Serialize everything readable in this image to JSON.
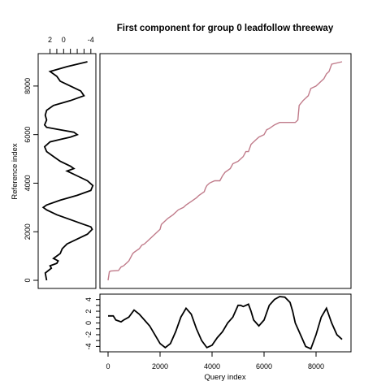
{
  "chart_data": {
    "type": "line",
    "title": "First component for group 0 leadfollow threeway",
    "panels": {
      "alignment": {
        "xlabel": "Query index",
        "ylabel": "Reference index",
        "xlim": [
          0,
          9000
        ],
        "ylim": [
          0,
          9000
        ],
        "color": "#c07b8a",
        "x": [
          0,
          50,
          100,
          400,
          500,
          600,
          700,
          800,
          900,
          950,
          1000,
          1200,
          1300,
          1400,
          1600,
          1700,
          1900,
          2000,
          2050,
          2200,
          2300,
          2500,
          2700,
          2900,
          3000,
          3200,
          3400,
          3500,
          3700,
          3750,
          3800,
          3900,
          4000,
          4100,
          4300,
          4400,
          4500,
          4700,
          4800,
          5000,
          5100,
          5200,
          5300,
          5400,
          5500,
          5700,
          5800,
          6000,
          6100,
          6200,
          6400,
          6600,
          6800,
          7200,
          7300,
          7350,
          7500,
          7700,
          7800,
          8000,
          8200,
          8300,
          8400,
          8500,
          8600,
          9000
        ],
        "y": [
          0,
          350,
          380,
          400,
          550,
          600,
          700,
          800,
          1000,
          1100,
          1150,
          1300,
          1450,
          1500,
          1700,
          1800,
          2000,
          2100,
          2300,
          2450,
          2550,
          2700,
          2900,
          3000,
          3100,
          3250,
          3400,
          3500,
          3650,
          3800,
          3900,
          4000,
          4050,
          4100,
          4100,
          4300,
          4450,
          4600,
          4800,
          4900,
          5000,
          5100,
          5300,
          5300,
          5600,
          5800,
          5900,
          6000,
          6200,
          6250,
          6400,
          6500,
          6500,
          6500,
          6600,
          7200,
          7400,
          7600,
          7900,
          8000,
          8200,
          8300,
          8500,
          8600,
          8900,
          9000
        ]
      },
      "reference": {
        "tick_values": [
          2,
          0,
          -4
        ],
        "tick_labels": [
          "2",
          "0",
          "-4"
        ],
        "xlim": [
          3.5,
          -4.5
        ],
        "ylim": [
          0,
          9000
        ],
        "y": [
          0,
          300,
          500,
          600,
          700,
          800,
          900,
          1000,
          1100,
          1300,
          1500,
          1700,
          1900,
          2100,
          2200,
          2300,
          2500,
          2700,
          2900,
          3000,
          3100,
          3300,
          3500,
          3700,
          3900,
          4100,
          4300,
          4500,
          4600,
          4700,
          4900,
          5100,
          5300,
          5500,
          5700,
          5800,
          5900,
          6000,
          6100,
          6200,
          6300,
          6400,
          6600,
          6800,
          7000,
          7200,
          7400,
          7600,
          7800,
          8000,
          8200,
          8400,
          8600,
          8800,
          9000
        ],
        "value": [
          2.5,
          2.7,
          1.8,
          2.0,
          1.0,
          0.8,
          1.5,
          1.0,
          0.5,
          0.2,
          -0.5,
          -2.0,
          -3.5,
          -4.2,
          -4.0,
          -3.0,
          -1.0,
          1.0,
          2.5,
          3.0,
          2.5,
          0.5,
          -2.0,
          -4.0,
          -4.3,
          -3.5,
          -2.0,
          -0.5,
          -1.5,
          -1.0,
          0.5,
          1.5,
          2.5,
          2.8,
          2.0,
          0.5,
          -1.0,
          -2.0,
          -1.5,
          0.5,
          2.5,
          2.8,
          2.5,
          2.7,
          2.5,
          1.5,
          -1.0,
          -3.0,
          -2.5,
          -1.0,
          0.5,
          1.0,
          2.0,
          -0.5,
          -3.5
        ]
      },
      "query": {
        "tick_values": [
          4,
          2,
          0,
          -2,
          -4
        ],
        "tick_labels": [
          "4",
          "2",
          "0",
          "-2",
          "-4"
        ],
        "xticks": [
          0,
          2000,
          4000,
          6000,
          8000
        ],
        "xlim": [
          0,
          9000
        ],
        "ylim": [
          -4.5,
          4.5
        ],
        "x": [
          0,
          200,
          300,
          500,
          600,
          800,
          1000,
          1200,
          1400,
          1600,
          1800,
          2000,
          2200,
          2400,
          2600,
          2800,
          3000,
          3200,
          3400,
          3600,
          3800,
          4000,
          4200,
          4400,
          4600,
          4800,
          5000,
          5100,
          5200,
          5400,
          5500,
          5600,
          5800,
          6000,
          6200,
          6400,
          6600,
          6800,
          7000,
          7100,
          7200,
          7400,
          7600,
          7800,
          8000,
          8200,
          8400,
          8600,
          8800,
          9000
        ],
        "value": [
          1.2,
          1.2,
          0.5,
          0.2,
          0.5,
          1.0,
          2.2,
          1.5,
          0.5,
          -0.5,
          -2.0,
          -3.5,
          -4.2,
          -3.5,
          -1.5,
          1.0,
          2.5,
          1.5,
          -1.0,
          -3.0,
          -4.2,
          -3.8,
          -2.5,
          -1.5,
          0.0,
          1.0,
          3.0,
          3.0,
          2.8,
          3.2,
          2.0,
          0.5,
          -0.5,
          0.5,
          3.0,
          4.0,
          4.5,
          4.4,
          3.5,
          2.0,
          0.0,
          -2.0,
          -4.0,
          -4.4,
          -2.0,
          1.0,
          2.5,
          0.0,
          -2.0,
          -2.8
        ]
      }
    },
    "ref_yticks": [
      0,
      2000,
      4000,
      6000,
      8000
    ],
    "ref_ytick_labels": [
      "0",
      "2000",
      "4000",
      "6000",
      "8000"
    ],
    "query_xtick_labels": [
      "0",
      "2000",
      "4000",
      "6000",
      "8000"
    ]
  }
}
